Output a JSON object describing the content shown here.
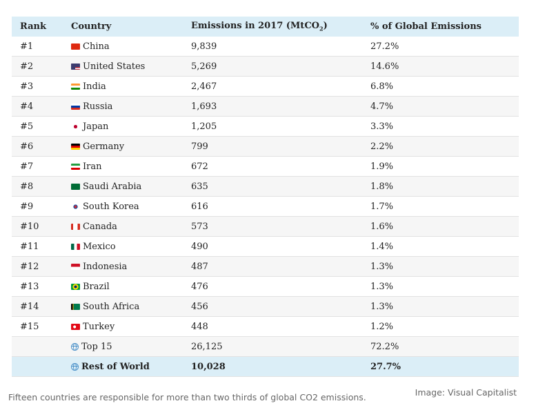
{
  "header": {
    "rank": "Rank",
    "country": "Country",
    "emissions": "Emissions in 2017 (MtCO",
    "emissions_sub": "2",
    "emissions_end": ")",
    "share": "% of Global Emissions"
  },
  "rows": [
    {
      "rank": "#1",
      "country": "China",
      "emissions": "9,839",
      "share": "27.2%",
      "flag": "china-flag-icon"
    },
    {
      "rank": "#2",
      "country": "United States",
      "emissions": "5,269",
      "share": "14.6%",
      "flag": "united-states-flag-icon"
    },
    {
      "rank": "#3",
      "country": "India",
      "emissions": "2,467",
      "share": "6.8%",
      "flag": "india-flag-icon"
    },
    {
      "rank": "#4",
      "country": "Russia",
      "emissions": "1,693",
      "share": "4.7%",
      "flag": "russia-flag-icon"
    },
    {
      "rank": "#5",
      "country": "Japan",
      "emissions": "1,205",
      "share": "3.3%",
      "flag": "japan-flag-icon"
    },
    {
      "rank": "#6",
      "country": "Germany",
      "emissions": "799",
      "share": "2.2%",
      "flag": "germany-flag-icon"
    },
    {
      "rank": "#7",
      "country": "Iran",
      "emissions": "672",
      "share": "1.9%",
      "flag": "iran-flag-icon"
    },
    {
      "rank": "#8",
      "country": "Saudi Arabia",
      "emissions": "635",
      "share": "1.8%",
      "flag": "saudi-arabia-flag-icon"
    },
    {
      "rank": "#9",
      "country": "South Korea",
      "emissions": "616",
      "share": "1.7%",
      "flag": "south-korea-flag-icon"
    },
    {
      "rank": "#10",
      "country": "Canada",
      "emissions": "573",
      "share": "1.6%",
      "flag": "canada-flag-icon"
    },
    {
      "rank": "#11",
      "country": "Mexico",
      "emissions": "490",
      "share": "1.4%",
      "flag": "mexico-flag-icon"
    },
    {
      "rank": "#12",
      "country": "Indonesia",
      "emissions": "487",
      "share": "1.3%",
      "flag": "indonesia-flag-icon"
    },
    {
      "rank": "#13",
      "country": "Brazil",
      "emissions": "476",
      "share": "1.3%",
      "flag": "brazil-flag-icon"
    },
    {
      "rank": "#14",
      "country": "South Africa",
      "emissions": "456",
      "share": "1.3%",
      "flag": "south-africa-flag-icon"
    },
    {
      "rank": "#15",
      "country": "Turkey",
      "emissions": "448",
      "share": "1.2%",
      "flag": "turkey-flag-icon"
    }
  ],
  "totals": [
    {
      "rank": "",
      "country": "Top 15",
      "emissions": "26,125",
      "share": "72.2%",
      "icon": "globe-icon"
    },
    {
      "rank": "",
      "country": "Rest of World",
      "emissions": "10,028",
      "share": "27.7%",
      "icon": "globe-icon"
    }
  ],
  "caption": "Fifteen countries are responsible for more than two thirds of global CO2 emissions.",
  "credit": "Image: Visual Capitalist"
}
